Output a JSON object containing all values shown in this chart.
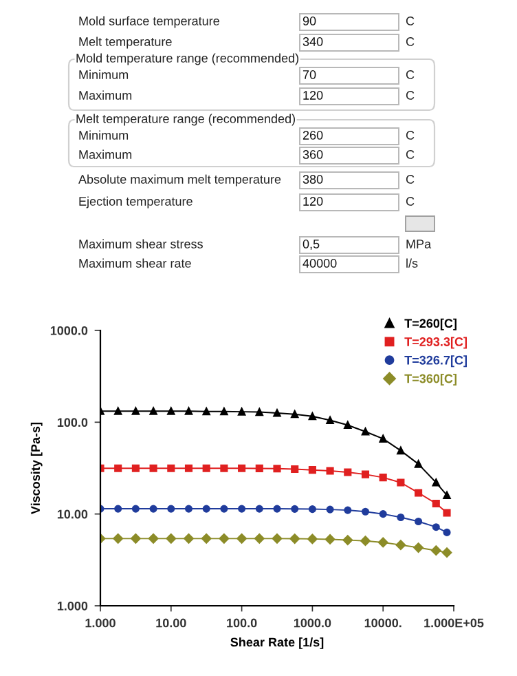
{
  "chart_data": [
    {
      "type": "other",
      "annotations": [
        "Mold surface temperature",
        "90",
        "C",
        "Melt temperature",
        "340",
        "C",
        "Mold temperature range (recommended)",
        "Minimum",
        "70",
        "C",
        "Maximum",
        "120",
        "C",
        "Melt temperature range (recommended)",
        "Minimum",
        "260",
        "C",
        "Maximum",
        "360",
        "C",
        "Absolute maximum melt temperature",
        "380",
        "C",
        "Ejection temperature",
        "120",
        "C",
        "Maximum shear stress",
        "0,5",
        "MPa",
        "Maximum shear rate",
        "40000",
        "l/s"
      ]
    },
    {
      "type": "line",
      "xlabel": "Shear Rate [1/s]",
      "ylabel": "Viscosity [Pa-s]",
      "log": "xy",
      "grid": false,
      "legend": "top right",
      "line_style": "solid",
      "x": [
        1,
        1.778,
        3.162,
        5.623,
        10,
        17.78,
        31.62,
        56.23,
        100,
        177.8,
        316.2,
        562.3,
        1000,
        1778,
        3162,
        5623,
        10000,
        17780,
        31620,
        56230,
        80000
      ],
      "xlim": [
        1,
        100000
      ],
      "ylim": [
        1,
        1000
      ],
      "xticks": [
        {
          "value": 1,
          "label": "1.000"
        },
        {
          "value": 10,
          "label": "10.00"
        },
        {
          "value": 100,
          "label": "100.0"
        },
        {
          "value": 1000,
          "label": "1000.0"
        },
        {
          "value": 10000,
          "label": "10000."
        },
        {
          "value": 100000,
          "label": "1.000E+05"
        }
      ],
      "yticks": [
        {
          "value": 1,
          "label": "1.000"
        },
        {
          "value": 10,
          "label": "10.00"
        },
        {
          "value": 100,
          "label": "100.0"
        },
        {
          "value": 1000,
          "label": "1000.0"
        }
      ],
      "series": [
        {
          "name": "T=260[C]",
          "color": "#000000",
          "marker": "triangle",
          "values": [
            132,
            132,
            132,
            132,
            132,
            132,
            131,
            131,
            130,
            129,
            126,
            122,
            116,
            105,
            93,
            79,
            66,
            49,
            35,
            22,
            16
          ]
        },
        {
          "name": "T=293.3[C]",
          "color": "#e02020",
          "marker": "square",
          "values": [
            31.5,
            31.5,
            31.5,
            31.5,
            31.5,
            31.5,
            31.5,
            31.5,
            31.5,
            31.4,
            31.2,
            30.8,
            30.2,
            29.5,
            28.5,
            27,
            25,
            22,
            17,
            13,
            10.3
          ]
        },
        {
          "name": "T=326.7[C]",
          "color": "#203c9c",
          "marker": "circle",
          "values": [
            11.4,
            11.4,
            11.4,
            11.4,
            11.4,
            11.4,
            11.4,
            11.4,
            11.4,
            11.4,
            11.4,
            11.35,
            11.3,
            11.2,
            11,
            10.6,
            10,
            9.2,
            8.3,
            7.2,
            6.3
          ]
        },
        {
          "name": "T=360[C]",
          "color": "#8c8c28",
          "marker": "diamond",
          "values": [
            5.4,
            5.4,
            5.4,
            5.4,
            5.4,
            5.4,
            5.4,
            5.4,
            5.4,
            5.4,
            5.4,
            5.38,
            5.35,
            5.3,
            5.2,
            5.1,
            4.9,
            4.6,
            4.3,
            4.0,
            3.8
          ]
        }
      ]
    }
  ]
}
